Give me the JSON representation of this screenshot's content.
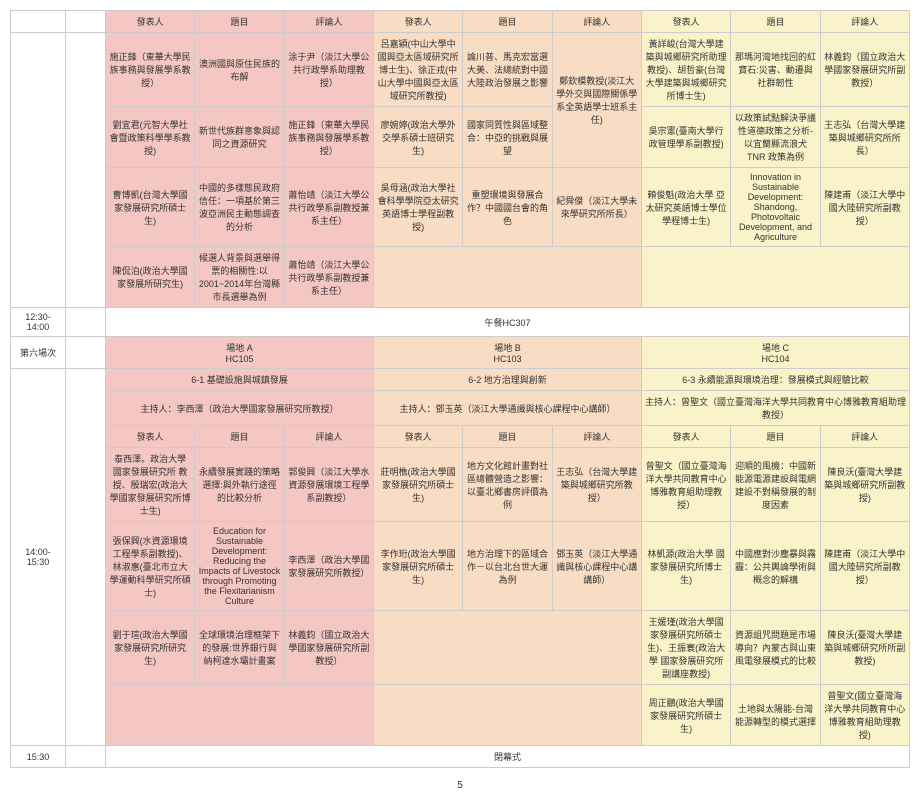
{
  "colors": {
    "pink": "#f4c7c3",
    "peach": "#f9dcc4",
    "yellow": "#faf2c8"
  },
  "h": {
    "presenter": "發表人",
    "topic": "題目",
    "discussant": "評論人"
  },
  "top": {
    "r1": {
      "a_p": "施正鋒（東華大學民族事務與發展學系教授）",
      "a_t": "澳洲國與原住民族的布解",
      "a_d": "涂于尹（淡江大學公共行政學系助理教授）",
      "b_p": "呂嘉穎(中山大學中國與亞太區域研究所博士生)、徐正戎(中山大學中國與亞太區域研究所教授)",
      "b_t": "論川普、馬克宏當選大美、法總統對中國大陸政治發展之影響",
      "c_p": "鄭欽模教授(淡江大學外交與國際關係學系全英語學士班系主任)",
      "c_t": "黃詳峻(台灣大學建築與城鄉研究所助理教授)、胡哲豪(台灣大學建築與城鄉研究所博士生)",
      "c_d": "那瑪河灣地找回的紅寶石:災害、動遷與社群韌性",
      "d": "林義鈞（國立政治大學國家發展研究所副教授）"
    },
    "r2": {
      "a_p": "劉宜君(元智大學社會暨政策科學學系教授)",
      "a_t": "新世代族群意象與認同之資源研究",
      "a_d": "施正鋒（東華大學民族事務與發展學系教授）",
      "b_p": "廖婉婷(政治大學外交學系碩士班研究生)",
      "b_t": "國家同質性與區域整合：中亞的挑戰與展望",
      "c_p": "鄭欽模教授(淡江大學外交與國際關係學系全英語學士班系主任)",
      "c_t": "吳宗憲(臺南大學行政管理學系副教授)",
      "c_d": "以政策試點解決爭議性道德政策之分析-以宜蘭縣流浪犬 TNR 政策為例",
      "d": "王志弘（台灣大學建築與城鄉研究所所長）"
    },
    "r3": {
      "a_p": "曹博凱(台灣大學國家發展研究所碩士生)",
      "a_t": "中國的多樣態民政府信任：一項基於第三波亞洲民主動態調查的分析",
      "a_d": "蕭怡靖（淡江大學公共行政學系副教授兼系主任）",
      "b_p": "吳母涵(政治大學社會科學學院亞太研究英語博士學程副教授)",
      "b_t": "重塑環境與發展合作？中國國台會的角色",
      "c_p": "紀舜傑（淡江大學未來學研究所所長）",
      "c_t": "賴俊魁(政治大學 亞太研究英語博士學位學程博士生)",
      "c_d": "Innovation in Sustainable Development: Shandong, Photovoltaic Development, and Agriculture",
      "d": "陳建甫（淡江大學中國大陸研究所副教授）"
    },
    "r4": {
      "a_p": "陳侃泊(政治大學國家發展所研究生)",
      "a_t": "候選人背景與選舉得票的相關性:以 2001~2014年台灣縣市長選舉為例",
      "a_d": "蕭怡靖（淡江大學公共行政學系副教授兼系主任）"
    }
  },
  "lunch": {
    "time": "12:30-14:00",
    "text": "午餐HC307"
  },
  "session6": {
    "label": "第六場次",
    "venueA": "場地 A\nHC105",
    "venueB": "場地 B\nHC103",
    "venueC": "場地 C\nHC104"
  },
  "afternoon": {
    "time": "14:00-15:30",
    "titleA": "6-1 基礎設施與城鎮發展",
    "chairA": "主持人：李西澤（政治大學國家發展研究所教授）",
    "titleB": "6-2 地方治理與創新",
    "chairB": "主持人：鄧玉英（淡江大學通識與核心課程中心講師）",
    "titleC": "6-3 永續能源與環境治理：發展模式與經驗比較",
    "chairC": "主持人：曾聖文（國立臺灣海洋大學共同教育中心博雅教育組助理教授）",
    "r1": {
      "a_p": "泰西澤。政治大學 國家發展研究所 教授、殷瑞宏(政治大學國家發展研究所博士生)",
      "a_t": "永續發展實踐的策略選擇:與外執行途徑的比較分析",
      "a_d": "郭俊興（淡江大學水資源發展環境工程學系副教授）",
      "b_p": "莊明樵(政治大學國家發展研究所碩士生)",
      "b_t": "地方文化館計畫對社區總體營造之影響：以臺北鄉書房評價為例",
      "b_d": "王志弘（台灣大學建築與城鄉研究所教授）",
      "c_p": "曾聖文（國立臺灣海洋大學共同教育中心博雅教育組助理教授）",
      "c_t": "迎順的風機：中國新能源電源建設與電網建設不對稱發展的制度因素",
      "c_d": "陳良沃(臺灣大學建築與城鄉研究所副教授)"
    },
    "r2": {
      "a_p": "張保興(水資源環境工程學系副教授)、林淑惠(臺北市立大學運動科學研究所碩士)",
      "a_t": "Education for Sustainable Development: Reducing the Impacts of Livestock through Promoting the Flexitarianism Culture",
      "a_d": "李西澤（政治大學國家發展研究所教授）",
      "b_p": "李作珩(政治大學國家發展研究所碩士生)",
      "b_t": "地方治理下的區域合作－以台北台世大運為例",
      "b_d": "鄧玉英（淡江大學通識與核心課程中心講講師）",
      "c_p": "林凱源(政治大學 國家發展研究所博士生)",
      "c_t": "中國應對沙塵暴與霧霾：公共輿論學術與概念的解構",
      "c_d": "陳建甫（淡江大學中國大陸研究所副教授）"
    },
    "r3": {
      "a_p": "劉于瑄(政治大學國家發展研究所研究生)",
      "a_t": "全球環境治理框架下的發展:世界銀行與納柯達水壩計畫案",
      "a_d": "林義鈞（國立政治大學國家發展研究所副教授）",
      "c_p": "王媛瑾(政治大學國家發展研究所碩士生)、王振寰(政治大學 國家發展研究所副講座教授)",
      "c_t": "資源詛咒問題是市場導向？內蒙古與山東風電發展模式的比較",
      "c_d": "陳良沃(臺灣大學建築與城鄉研究所所副教授)"
    },
    "r4": {
      "c_p": "周正鵬(政治大學國家發展研究所碩士生)",
      "c_t": "土地與太陽能-台灣能源轉型的模式選擇",
      "c_d": "曾聖文(國立臺灣海洋大學共同教育中心博雅教育組助理教授)"
    }
  },
  "closing": {
    "time": "15:30",
    "text": "閉幕式"
  },
  "pageNum": "5"
}
